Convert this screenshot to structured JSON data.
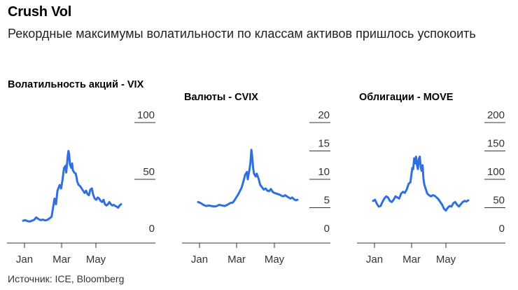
{
  "title": "Crush Vol",
  "subtitle": "Рекордные максимумы волатильности по классам активов пришлось успокоить",
  "source": "Источник: ICE, Bloomberg",
  "colors": {
    "line": "#2f6fe0",
    "grid": "#333333",
    "text": "#333333"
  },
  "chart_data": [
    {
      "type": "line",
      "title": "Волатильность акций - VIX",
      "x_ticks": [
        "Jan",
        "Mar",
        "May"
      ],
      "ylim": [
        0,
        100
      ],
      "y_ticks": [
        0,
        50,
        100
      ],
      "grid": true,
      "series": [
        {
          "values": [
            [
              0,
              13.5
            ],
            [
              3,
              14.0
            ],
            [
              6,
              13.2
            ],
            [
              9,
              12.8
            ],
            [
              12,
              13.5
            ],
            [
              15,
              14.2
            ],
            [
              18,
              16.5
            ],
            [
              21,
              15.0
            ],
            [
              24,
              14.0
            ],
            [
              27,
              14.5
            ],
            [
              30,
              13.8
            ],
            [
              33,
              14.2
            ],
            [
              36,
              15.5
            ],
            [
              39,
              17.0
            ],
            [
              41,
              25.0
            ],
            [
              43,
              33.0
            ],
            [
              45,
              28.0
            ],
            [
              47,
              40.0
            ],
            [
              50,
              45.0
            ],
            [
              52,
              42.0
            ],
            [
              54,
              50.0
            ],
            [
              56,
              60.0
            ],
            [
              58,
              62.0
            ],
            [
              59,
              56.0
            ],
            [
              61,
              70.0
            ],
            [
              62,
              75.0
            ],
            [
              63,
              72.0
            ],
            [
              64,
              63.0
            ],
            [
              66,
              60.0
            ],
            [
              67,
              64.0
            ],
            [
              68,
              58.0
            ],
            [
              70,
              56.0
            ],
            [
              72,
              55.0
            ],
            [
              73,
              52.0
            ],
            [
              74,
              48.0
            ],
            [
              76,
              45.0
            ],
            [
              78,
              44.0
            ],
            [
              80,
              42.0
            ],
            [
              82,
              40.0
            ],
            [
              84,
              38.0
            ],
            [
              86,
              40.0
            ],
            [
              88,
              37.0
            ],
            [
              90,
              36.0
            ],
            [
              92,
              41.0
            ],
            [
              94,
              42.0
            ],
            [
              96,
              36.0
            ],
            [
              98,
              33.0
            ],
            [
              100,
              32.0
            ],
            [
              102,
              34.0
            ],
            [
              104,
              33.0
            ],
            [
              106,
              31.0
            ],
            [
              108,
              30.0
            ],
            [
              110,
              32.0
            ],
            [
              112,
              28.0
            ],
            [
              114,
              27.0
            ],
            [
              116,
              28.0
            ],
            [
              118,
              30.0
            ],
            [
              120,
              28.0
            ],
            [
              122,
              27.0
            ],
            [
              124,
              27.5
            ],
            [
              126,
              26.5
            ],
            [
              128,
              26.0
            ],
            [
              130,
              25.0
            ],
            [
              132,
              27.0
            ],
            [
              134,
              28.0
            ]
          ]
        }
      ]
    },
    {
      "type": "line",
      "title": "Валюты - CVIX",
      "x_ticks": [
        "Jan",
        "Mar",
        "May"
      ],
      "ylim": [
        0,
        20
      ],
      "y_ticks": [
        0,
        5,
        10,
        15,
        20
      ],
      "grid": true,
      "series": [
        {
          "values": [
            [
              0,
              6.0
            ],
            [
              3,
              5.8
            ],
            [
              6,
              5.5
            ],
            [
              9,
              5.3
            ],
            [
              12,
              5.4
            ],
            [
              15,
              5.3
            ],
            [
              18,
              5.2
            ],
            [
              21,
              5.3
            ],
            [
              24,
              5.5
            ],
            [
              27,
              5.4
            ],
            [
              30,
              5.3
            ],
            [
              33,
              5.5
            ],
            [
              36,
              5.8
            ],
            [
              39,
              5.9
            ],
            [
              41,
              6.3
            ],
            [
              43,
              6.8
            ],
            [
              45,
              7.3
            ],
            [
              47,
              7.9
            ],
            [
              49,
              8.5
            ],
            [
              51,
              9.6
            ],
            [
              53,
              10.8
            ],
            [
              55,
              11.3
            ],
            [
              56,
              10.0
            ],
            [
              57,
              11.0
            ],
            [
              58,
              11.8
            ],
            [
              59,
              13.0
            ],
            [
              60,
              15.2
            ],
            [
              61,
              14.0
            ],
            [
              62,
              12.0
            ],
            [
              63,
              11.0
            ],
            [
              65,
              10.5
            ],
            [
              66,
              11.0
            ],
            [
              68,
              10.2
            ],
            [
              70,
              9.0
            ],
            [
              72,
              8.6
            ],
            [
              74,
              8.2
            ],
            [
              76,
              8.4
            ],
            [
              78,
              8.0
            ],
            [
              80,
              7.9
            ],
            [
              82,
              8.3
            ],
            [
              84,
              7.8
            ],
            [
              86,
              7.6
            ],
            [
              88,
              7.5
            ],
            [
              90,
              7.4
            ],
            [
              92,
              7.3
            ],
            [
              94,
              7.1
            ],
            [
              96,
              7.0
            ],
            [
              98,
              7.2
            ],
            [
              100,
              7.0
            ],
            [
              102,
              6.8
            ],
            [
              104,
              6.6
            ],
            [
              106,
              6.8
            ],
            [
              108,
              6.5
            ],
            [
              110,
              6.3
            ],
            [
              112,
              6.4
            ]
          ]
        }
      ]
    },
    {
      "type": "line",
      "title": "Облигации - MOVE",
      "x_ticks": [
        "Jan",
        "Mar",
        "May"
      ],
      "ylim": [
        0,
        200
      ],
      "y_ticks": [
        0,
        50,
        100,
        150,
        200
      ],
      "grid": true,
      "series": [
        {
          "values": [
            [
              0,
              62.0
            ],
            [
              2,
              64.0
            ],
            [
              4,
              57.0
            ],
            [
              6,
              52.0
            ],
            [
              8,
              53.0
            ],
            [
              10,
              60.0
            ],
            [
              12,
              66.0
            ],
            [
              14,
              70.0
            ],
            [
              16,
              68.0
            ],
            [
              18,
              62.0
            ],
            [
              20,
              60.0
            ],
            [
              22,
              64.0
            ],
            [
              24,
              70.0
            ],
            [
              26,
              68.0
            ],
            [
              28,
              66.0
            ],
            [
              30,
              75.0
            ],
            [
              32,
              78.0
            ],
            [
              34,
              76.0
            ],
            [
              36,
              82.0
            ],
            [
              38,
              92.0
            ],
            [
              40,
              95.0
            ],
            [
              41,
              108.0
            ],
            [
              42,
              120.0
            ],
            [
              43,
              118.0
            ],
            [
              44,
              137.0
            ],
            [
              45,
              128.0
            ],
            [
              46,
              140.0
            ],
            [
              47,
              125.0
            ],
            [
              48,
              118.0
            ],
            [
              49,
              136.0
            ],
            [
              50,
              140.0
            ],
            [
              51,
              122.0
            ],
            [
              52,
              115.0
            ],
            [
              53,
              125.0
            ],
            [
              54,
              100.0
            ],
            [
              55,
              90.0
            ],
            [
              56,
              85.0
            ],
            [
              58,
              75.0
            ],
            [
              60,
              72.0
            ],
            [
              62,
              70.0
            ],
            [
              64,
              72.0
            ],
            [
              66,
              71.0
            ],
            [
              68,
              68.0
            ],
            [
              70,
              65.0
            ],
            [
              72,
              60.0
            ],
            [
              74,
              55.0
            ],
            [
              76,
              48.0
            ],
            [
              78,
              45.0
            ],
            [
              80,
              50.0
            ],
            [
              82,
              53.0
            ],
            [
              84,
              52.0
            ],
            [
              86,
              58.0
            ],
            [
              88,
              60.0
            ],
            [
              90,
              55.0
            ],
            [
              92,
              52.0
            ],
            [
              94,
              56.0
            ],
            [
              96,
              60.0
            ],
            [
              98,
              62.0
            ],
            [
              100,
              61.0
            ],
            [
              102,
              63.0
            ]
          ]
        }
      ]
    }
  ]
}
